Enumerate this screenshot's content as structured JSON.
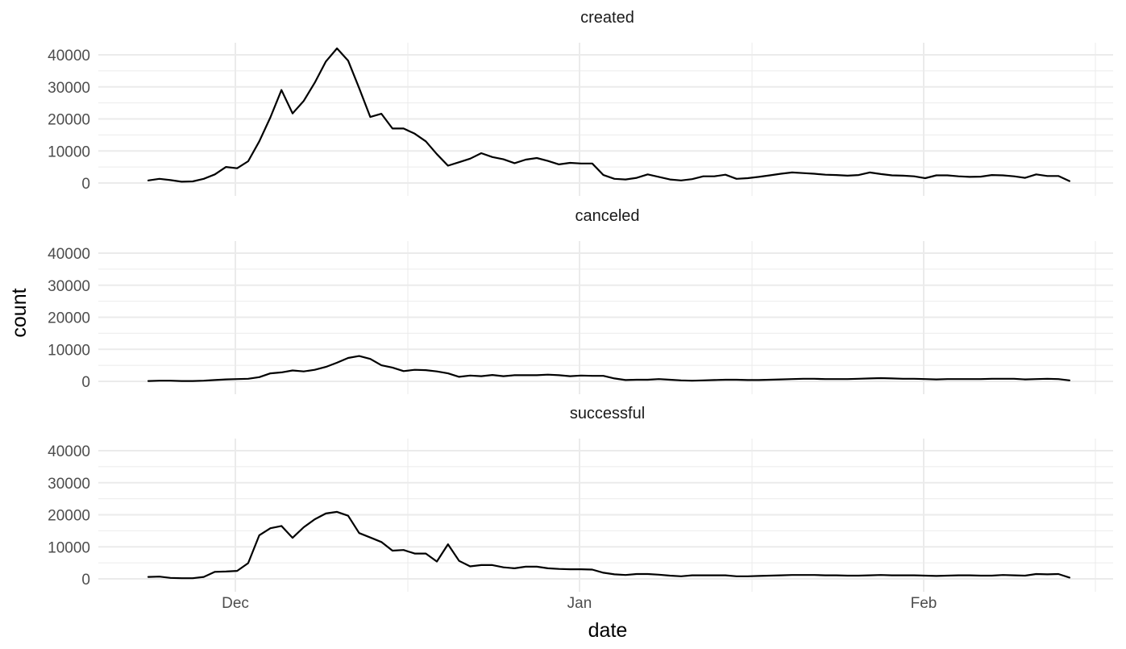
{
  "chart_data": {
    "type": "line",
    "xlabel": "date",
    "ylabel": "count",
    "x_ticks": [
      "Dec",
      "Jan",
      "Feb"
    ],
    "y_ticks": [
      "0",
      "10000",
      "20000",
      "30000",
      "40000"
    ],
    "ylim": [
      0,
      42000
    ],
    "grid": true,
    "x_start": "2015-11-22",
    "panels": [
      {
        "name": "created",
        "values": [
          800,
          1300,
          900,
          400,
          500,
          1300,
          2700,
          5000,
          4600,
          6800,
          13000,
          20500,
          29000,
          21700,
          25600,
          31300,
          37900,
          42000,
          38200,
          29600,
          20600,
          21600,
          17000,
          17000,
          15400,
          13000,
          9000,
          5400,
          6500,
          7600,
          9300,
          8100,
          7400,
          6200,
          7300,
          7800,
          6900,
          5800,
          6300,
          6100,
          6100,
          2500,
          1300,
          1100,
          1600,
          2700,
          1900,
          1100,
          800,
          1200,
          2100,
          2100,
          2600,
          1300,
          1500,
          1900,
          2400,
          2900,
          3300,
          3100,
          2900,
          2600,
          2500,
          2300,
          2500,
          3300,
          2800,
          2400,
          2300,
          2100,
          1500,
          2400,
          2400,
          2100,
          1900,
          2000,
          2500,
          2400,
          2100,
          1600,
          2700,
          2200,
          2200,
          600
        ]
      },
      {
        "name": "canceled",
        "values": [
          100,
          200,
          200,
          100,
          100,
          200,
          400,
          600,
          700,
          800,
          1300,
          2500,
          2800,
          3400,
          3100,
          3600,
          4500,
          5800,
          7300,
          7900,
          7000,
          5000,
          4300,
          3200,
          3600,
          3500,
          3100,
          2500,
          1400,
          1800,
          1600,
          2000,
          1600,
          1900,
          1900,
          1900,
          2100,
          1900,
          1600,
          1800,
          1700,
          1700,
          900,
          400,
          500,
          500,
          700,
          500,
          300,
          200,
          300,
          400,
          500,
          500,
          400,
          400,
          500,
          600,
          700,
          800,
          800,
          700,
          700,
          700,
          800,
          900,
          1000,
          900,
          800,
          800,
          700,
          600,
          700,
          700,
          700,
          700,
          800,
          800,
          800,
          600,
          700,
          800,
          700,
          300
        ]
      },
      {
        "name": "successful",
        "values": [
          600,
          700,
          300,
          200,
          200,
          600,
          2200,
          2300,
          2500,
          4900,
          13600,
          15800,
          16500,
          12800,
          16100,
          18600,
          20400,
          20900,
          19700,
          14300,
          12900,
          11500,
          8800,
          9000,
          7900,
          7900,
          5400,
          10800,
          5600,
          3900,
          4300,
          4300,
          3600,
          3300,
          3800,
          3800,
          3300,
          3100,
          3000,
          3000,
          2900,
          1900,
          1400,
          1200,
          1500,
          1500,
          1300,
          1000,
          800,
          1100,
          1100,
          1100,
          1100,
          800,
          800,
          900,
          1000,
          1100,
          1200,
          1200,
          1200,
          1100,
          1100,
          1000,
          1000,
          1100,
          1200,
          1100,
          1100,
          1100,
          1000,
          900,
          1000,
          1100,
          1100,
          1000,
          1000,
          1200,
          1100,
          1000,
          1500,
          1400,
          1500,
          400
        ]
      }
    ]
  }
}
